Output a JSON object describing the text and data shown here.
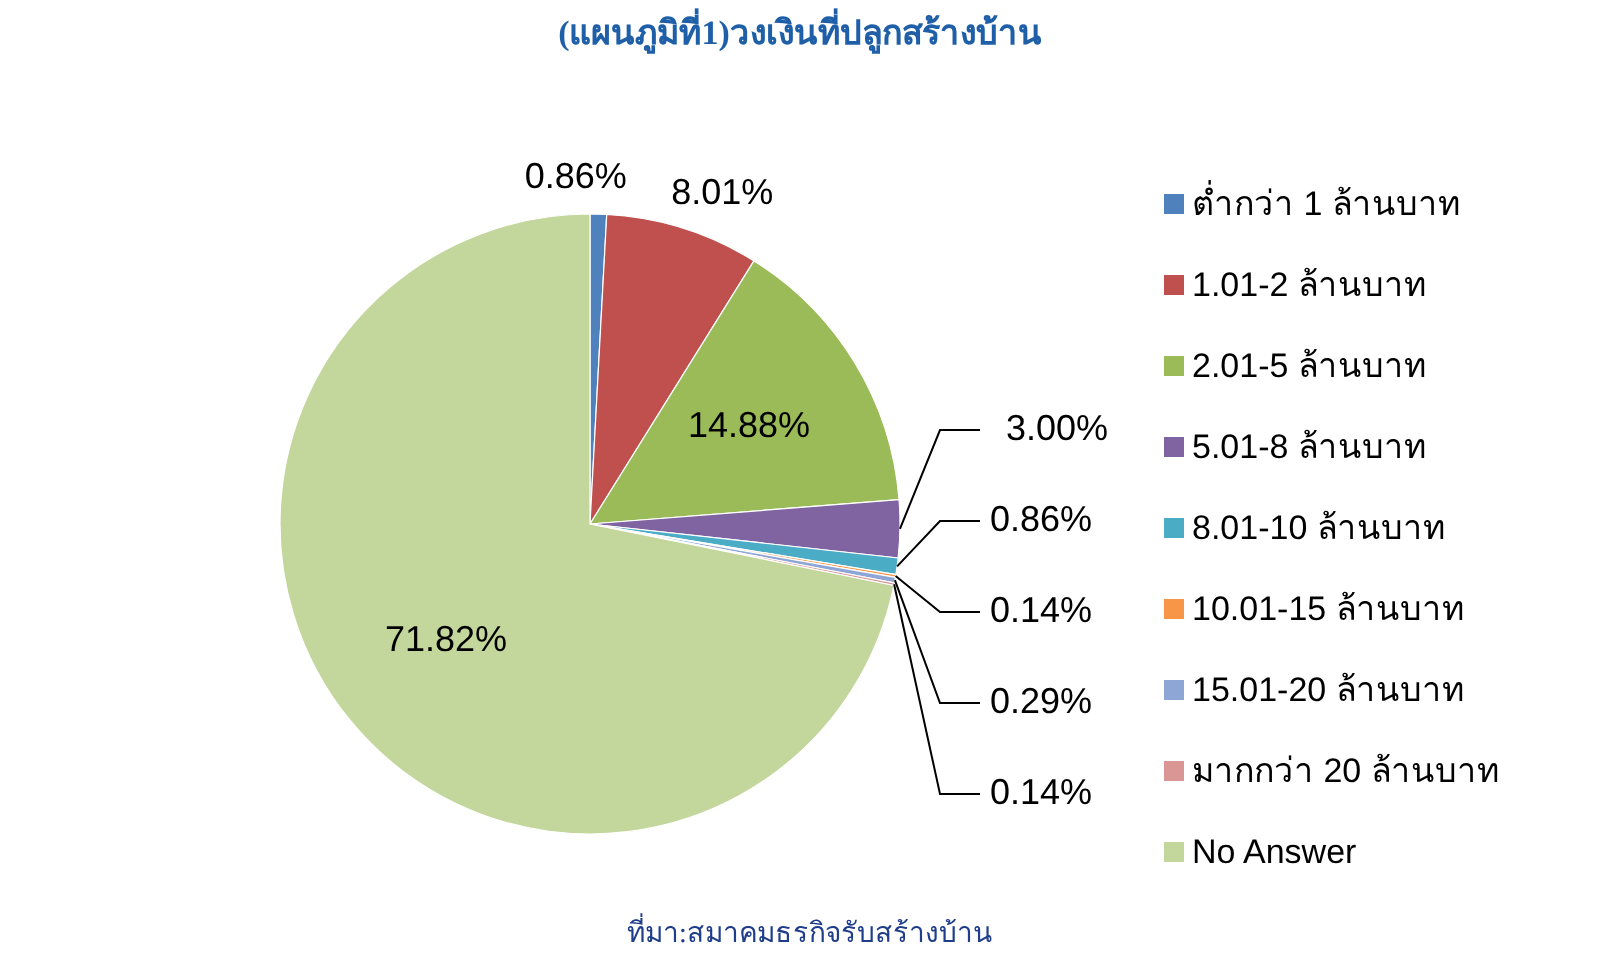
{
  "chart_data": {
    "type": "pie",
    "title": "(แผนภูมิที่1)วงเงินที่ปลูกสร้างบ้าน",
    "categories": [
      "ต่ำกว่า 1 ล้านบาท",
      "1.01-2 ล้านบาท",
      "2.01-5 ล้านบาท",
      "5.01-8 ล้านบาท",
      "8.01-10 ล้านบาท",
      "10.01-15 ล้านบาท",
      "15.01-20 ล้านบาท",
      "มากกว่า 20 ล้านบาท",
      "No Answer"
    ],
    "values": [
      0.86,
      8.01,
      14.88,
      3.0,
      0.86,
      0.14,
      0.29,
      0.14,
      71.82
    ],
    "value_labels": [
      "0.86%",
      "8.01%",
      "14.88%",
      "3.00%",
      "0.86%",
      "0.14%",
      "0.29%",
      "0.14%",
      "71.82%"
    ],
    "colors": [
      "#4f81bd",
      "#c0504d",
      "#9bbb59",
      "#8064a2",
      "#4bacc6",
      "#f79646",
      "#8ea6d6",
      "#d99694",
      "#c3d69b"
    ],
    "legend": "right",
    "annotations": [
      "ที่มา:สมาคมธรกิจรับสร้างบ้าน"
    ]
  }
}
